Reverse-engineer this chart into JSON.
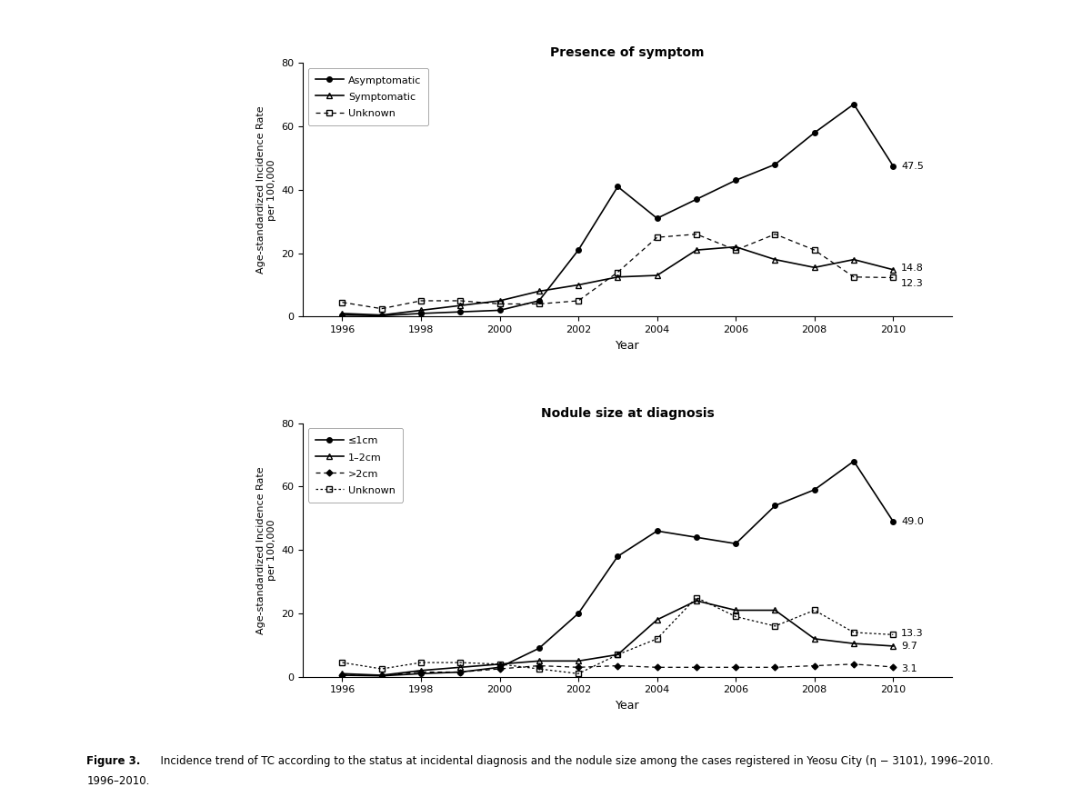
{
  "years": [
    1996,
    1997,
    1998,
    1999,
    2000,
    2001,
    2002,
    2003,
    2004,
    2005,
    2006,
    2007,
    2008,
    2009,
    2010
  ],
  "top_asymptomatic": [
    0.5,
    0.3,
    1.0,
    1.5,
    2.0,
    5.0,
    21.0,
    41.0,
    31.0,
    37.0,
    43.0,
    48.0,
    58.0,
    67.0,
    47.5
  ],
  "top_symptomatic": [
    1.0,
    0.5,
    2.0,
    3.5,
    5.0,
    8.0,
    10.0,
    12.5,
    13.0,
    21.0,
    22.0,
    18.0,
    15.5,
    18.0,
    14.8
  ],
  "top_unknown": [
    4.5,
    2.5,
    5.0,
    5.0,
    4.0,
    4.0,
    5.0,
    14.0,
    25.0,
    26.0,
    21.0,
    26.0,
    21.0,
    12.5,
    12.3
  ],
  "bot_le1cm": [
    0.5,
    0.3,
    1.0,
    1.5,
    3.0,
    9.0,
    20.0,
    38.0,
    46.0,
    44.0,
    42.0,
    54.0,
    59.0,
    68.0,
    49.0
  ],
  "bot_1to2cm": [
    1.0,
    0.5,
    2.0,
    3.0,
    4.0,
    5.0,
    5.0,
    7.0,
    18.0,
    24.0,
    21.0,
    21.0,
    12.0,
    10.5,
    9.7
  ],
  "bot_gt2cm": [
    0.5,
    0.5,
    1.5,
    1.5,
    2.5,
    3.5,
    3.0,
    3.5,
    3.0,
    3.0,
    3.0,
    3.0,
    3.5,
    4.0,
    3.1
  ],
  "bot_unknown": [
    4.5,
    2.5,
    4.5,
    4.5,
    4.0,
    2.5,
    1.0,
    7.0,
    12.0,
    25.0,
    19.0,
    16.0,
    21.0,
    14.0,
    13.3
  ],
  "title_top": "Presence of symptom",
  "title_bot": "Nodule size at diagnosis",
  "ylabel": "Age-standardized Incidence Rate\nper 100,000",
  "xlabel": "Year",
  "ylim": [
    0,
    80
  ],
  "yticks": [
    0,
    20,
    40,
    60,
    80
  ],
  "xticks": [
    1996,
    1998,
    2000,
    2002,
    2004,
    2006,
    2008,
    2010
  ],
  "legend_top": [
    "Asymptomatic",
    "Symptomatic",
    "Unknown"
  ],
  "legend_bot": [
    "≤1cm",
    "1–2cm",
    ">2cm",
    "Unknown"
  ],
  "fig_caption_bold": "Figure 3.",
  "fig_caption_normal": "  Incidence trend of TC according to the status at incidental diagnosis and the nodule size among the cases registered in Yeosu City (η − 3101), 1996–2010.",
  "bg_color": "#ffffff"
}
